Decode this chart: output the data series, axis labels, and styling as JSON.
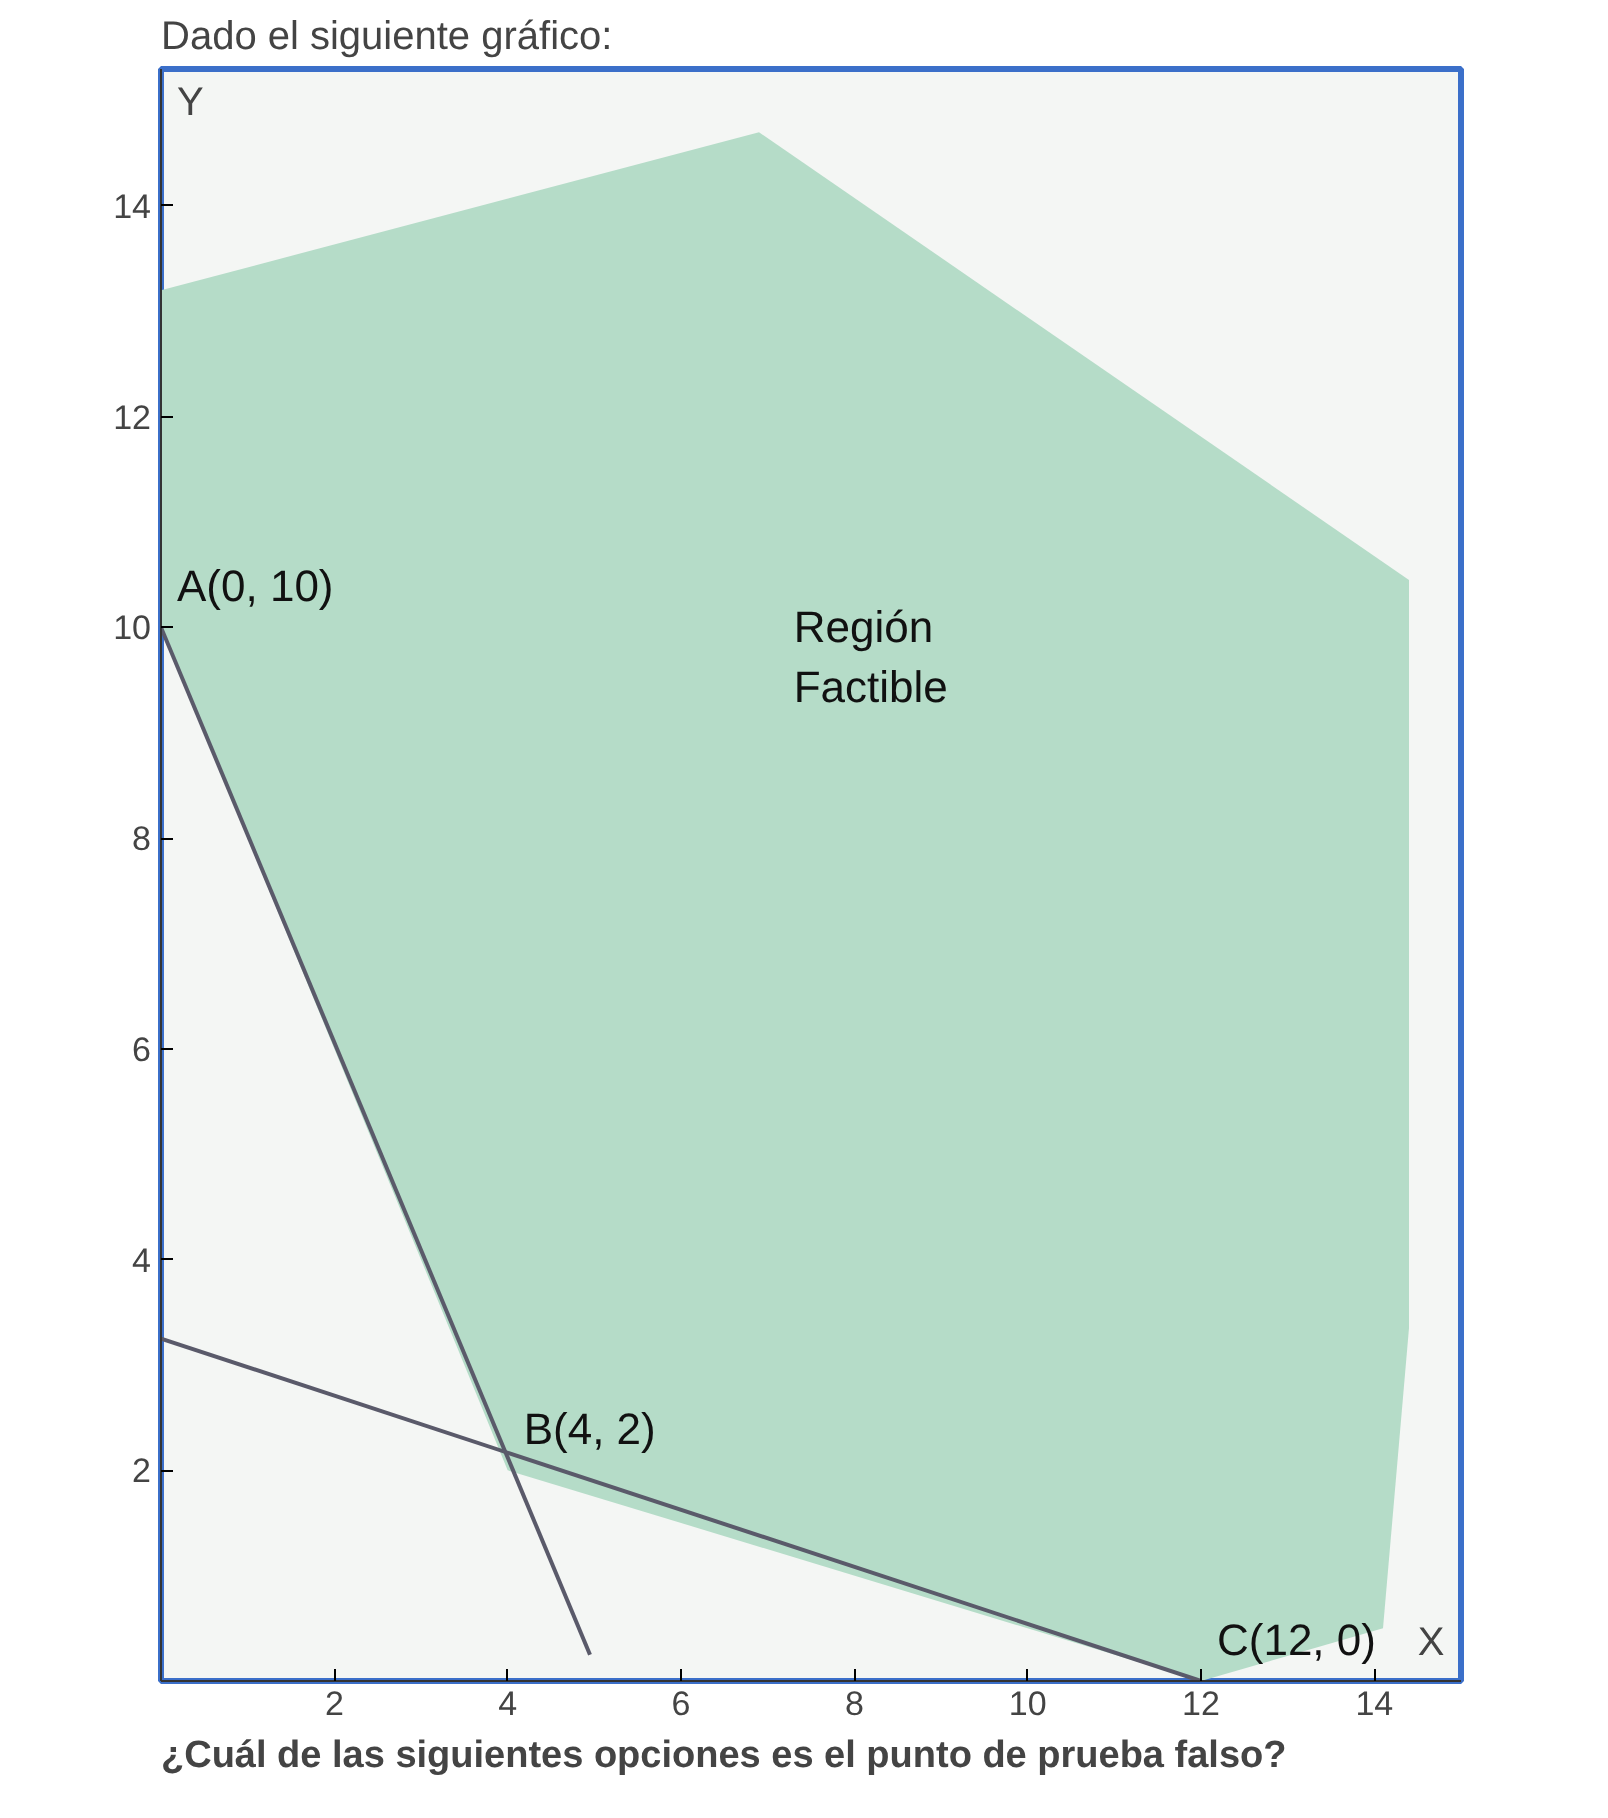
{
  "chart_data": {
    "type": "line",
    "title": "Dado el siguiente gráfico:",
    "xlabel": "X",
    "ylabel": "Y",
    "xlim": [
      0,
      15
    ],
    "ylim": [
      0,
      15.3
    ],
    "xticks": [
      2,
      4,
      6,
      8,
      10,
      12,
      14
    ],
    "yticks": [
      2,
      4,
      6,
      8,
      10,
      12,
      14
    ],
    "grid": false,
    "series": [
      {
        "type": "area",
        "color": "#b5dcc8",
        "x": [
          0,
          0,
          6.9,
          14.4,
          14.4,
          14.1,
          12,
          4
        ],
        "values": [
          10,
          13.2,
          14.7,
          10.45,
          3.35,
          0.5,
          0,
          2
        ]
      },
      {
        "color": "#5a5a6a",
        "x": [
          0,
          4.95
        ],
        "values": [
          10,
          0.25
        ]
      },
      {
        "color": "#5a5a6a",
        "x": [
          0,
          12
        ],
        "values": [
          3.25,
          0
        ]
      }
    ],
    "annotations": [
      {
        "text": "A(0, 10)",
        "x": 0,
        "y": 10
      },
      {
        "text": "B(4, 2)",
        "x": 4,
        "y": 2
      },
      {
        "text": "C(12, 0)",
        "x": 12,
        "y": 0
      },
      "Región\nFactible",
      "¿Cuál de las siguientes opciones es el punto de prueba falso?"
    ]
  }
}
